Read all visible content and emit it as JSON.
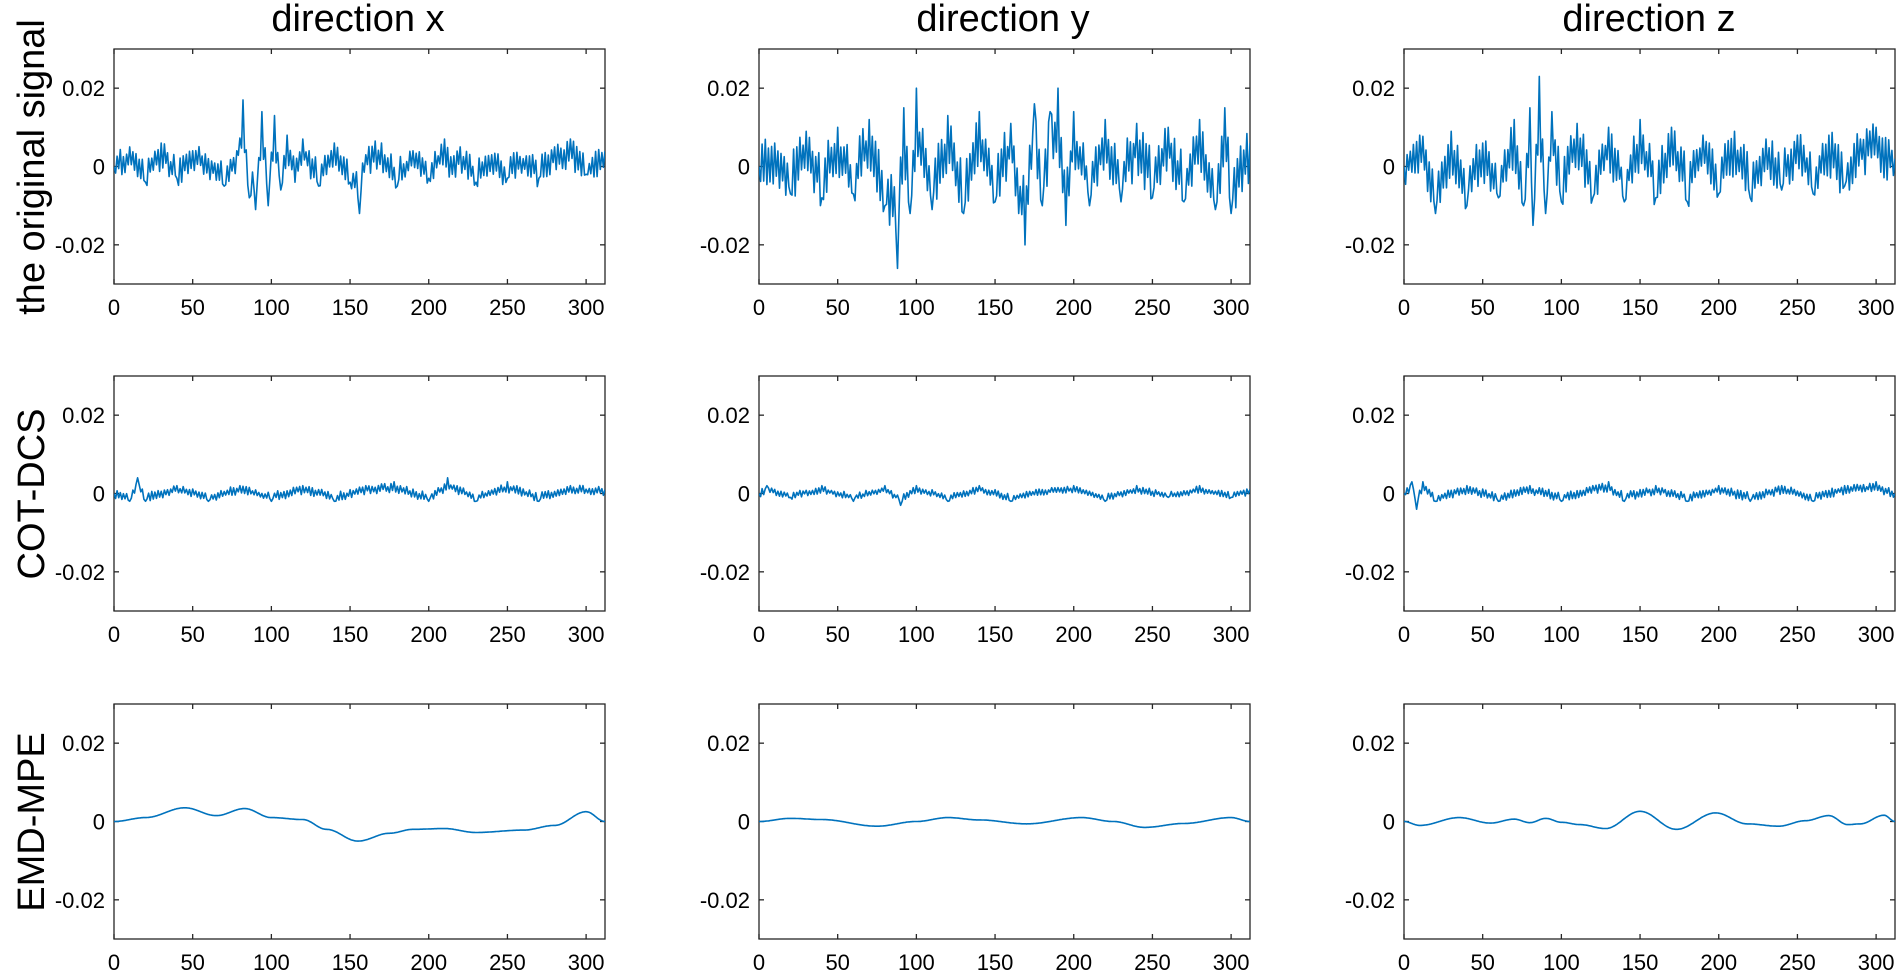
{
  "figure": {
    "column_titles": [
      "direction x",
      "direction y",
      "direction z"
    ],
    "row_labels": [
      "the original signal",
      "COT-DCS",
      "EMD-MPE"
    ]
  },
  "style": {
    "line_color": "#0072BD",
    "axes_color": "#262626"
  },
  "chart_data": [
    {
      "type": "line",
      "row": 0,
      "col": 0,
      "ylabel": "the original signal",
      "title": "direction x",
      "xlim": [
        0,
        312
      ],
      "ylim": [
        -0.03,
        0.03
      ],
      "xticks": [
        0,
        50,
        100,
        150,
        200,
        250,
        300
      ],
      "yticks": [
        -0.02,
        0,
        0.02
      ],
      "grid": false,
      "waveform": "noise",
      "amplitude": 0.0045,
      "seed": 11,
      "x": [
        0,
        10,
        20,
        30,
        40,
        50,
        60,
        70,
        78,
        82,
        86,
        90,
        94,
        98,
        102,
        106,
        110,
        115,
        120,
        130,
        140,
        150,
        156,
        160,
        170,
        180,
        190,
        200,
        210,
        215,
        220,
        230,
        240,
        250,
        260,
        270,
        280,
        290,
        300,
        312
      ],
      "y": [
        0,
        0.005,
        -0.004,
        0.006,
        -0.003,
        0.004,
        0.002,
        -0.005,
        0.004,
        0.017,
        -0.008,
        -0.011,
        0.014,
        -0.01,
        0.013,
        -0.006,
        0.008,
        -0.004,
        0.007,
        -0.005,
        0.006,
        -0.004,
        -0.012,
        0.003,
        0.006,
        -0.005,
        0.004,
        -0.003,
        0.007,
        -0.002,
        0.005,
        -0.004,
        0.003,
        -0.003,
        0.002,
        -0.003,
        0.005,
        0.007,
        -0.002,
        0.004
      ]
    },
    {
      "type": "line",
      "row": 0,
      "col": 1,
      "title": "direction y",
      "xlim": [
        0,
        312
      ],
      "ylim": [
        -0.03,
        0.03
      ],
      "xticks": [
        0,
        50,
        100,
        150,
        200,
        250,
        300
      ],
      "yticks": [
        -0.02,
        0,
        0.02
      ],
      "grid": false,
      "waveform": "noise",
      "amplitude": 0.0085,
      "seed": 23,
      "x": [
        0,
        10,
        20,
        30,
        40,
        50,
        60,
        70,
        80,
        88,
        92,
        96,
        100,
        110,
        120,
        130,
        140,
        150,
        160,
        165,
        169,
        175,
        180,
        185,
        190,
        195,
        200,
        210,
        220,
        230,
        240,
        250,
        260,
        270,
        280,
        290,
        296,
        300,
        312
      ],
      "y": [
        0,
        0.006,
        -0.007,
        0.009,
        -0.008,
        0.01,
        -0.007,
        0.012,
        -0.01,
        -0.026,
        0.015,
        -0.012,
        0.02,
        -0.011,
        0.013,
        -0.012,
        0.014,
        -0.009,
        0.011,
        -0.012,
        -0.02,
        0.016,
        -0.01,
        0.014,
        0.02,
        -0.015,
        0.014,
        -0.01,
        0.012,
        -0.009,
        0.011,
        -0.008,
        0.01,
        -0.009,
        0.012,
        -0.011,
        0.015,
        -0.012,
        0.006
      ]
    },
    {
      "type": "line",
      "row": 0,
      "col": 2,
      "title": "direction z",
      "xlim": [
        0,
        312
      ],
      "ylim": [
        -0.03,
        0.03
      ],
      "xticks": [
        0,
        50,
        100,
        150,
        200,
        250,
        300
      ],
      "yticks": [
        -0.02,
        0,
        0.02
      ],
      "grid": false,
      "waveform": "noise",
      "amplitude": 0.0075,
      "seed": 37,
      "x": [
        0,
        10,
        20,
        30,
        40,
        50,
        60,
        70,
        76,
        80,
        82,
        86,
        90,
        94,
        100,
        110,
        120,
        130,
        140,
        150,
        160,
        170,
        180,
        190,
        200,
        210,
        220,
        230,
        240,
        250,
        260,
        270,
        280,
        290,
        300,
        312
      ],
      "y": [
        0,
        0.008,
        -0.012,
        0.009,
        -0.01,
        0.006,
        -0.008,
        0.012,
        -0.01,
        0.015,
        -0.015,
        0.023,
        -0.012,
        0.014,
        -0.009,
        0.011,
        -0.008,
        0.01,
        -0.009,
        0.012,
        -0.008,
        0.01,
        -0.009,
        0.008,
        -0.007,
        0.009,
        -0.008,
        0.007,
        -0.006,
        0.008,
        -0.007,
        0.008,
        -0.005,
        0.007,
        0.01,
        0.002
      ]
    },
    {
      "type": "line",
      "row": 1,
      "col": 0,
      "ylabel": "COT-DCS",
      "xlim": [
        0,
        312
      ],
      "ylim": [
        -0.03,
        0.03
      ],
      "xticks": [
        0,
        50,
        100,
        150,
        200,
        250,
        300
      ],
      "yticks": [
        -0.02,
        0,
        0.02
      ],
      "grid": false,
      "waveform": "noise",
      "amplitude": 0.0014,
      "seed": 51,
      "x": [
        0,
        10,
        15,
        20,
        40,
        60,
        80,
        100,
        120,
        140,
        160,
        178,
        200,
        212,
        230,
        250,
        270,
        290,
        312
      ],
      "y": [
        0,
        -0.002,
        0.004,
        -0.002,
        0.002,
        -0.002,
        0.002,
        -0.002,
        0.002,
        -0.002,
        0.002,
        0.003,
        -0.002,
        0.004,
        -0.002,
        0.003,
        -0.002,
        0.002,
        0.001
      ]
    },
    {
      "type": "line",
      "row": 1,
      "col": 1,
      "xlim": [
        0,
        312
      ],
      "ylim": [
        -0.03,
        0.03
      ],
      "xticks": [
        0,
        50,
        100,
        150,
        200,
        250,
        300
      ],
      "yticks": [
        -0.02,
        0,
        0.02
      ],
      "grid": false,
      "waveform": "noise",
      "amplitude": 0.0011,
      "seed": 63,
      "x": [
        0,
        5,
        20,
        40,
        60,
        80,
        90,
        100,
        120,
        140,
        160,
        180,
        200,
        220,
        240,
        260,
        280,
        300,
        312
      ],
      "y": [
        0,
        0.002,
        -0.001,
        0.002,
        -0.002,
        0.002,
        -0.003,
        0.002,
        -0.002,
        0.002,
        -0.002,
        0.001,
        0.002,
        -0.002,
        0.002,
        -0.001,
        0.002,
        -0.001,
        0.001
      ]
    },
    {
      "type": "line",
      "row": 1,
      "col": 2,
      "xlim": [
        0,
        312
      ],
      "ylim": [
        -0.03,
        0.03
      ],
      "xticks": [
        0,
        50,
        100,
        150,
        200,
        250,
        300
      ],
      "yticks": [
        -0.02,
        0,
        0.02
      ],
      "grid": false,
      "waveform": "noise",
      "amplitude": 0.0014,
      "seed": 77,
      "x": [
        0,
        5,
        8,
        12,
        20,
        40,
        60,
        80,
        100,
        120,
        130,
        140,
        160,
        180,
        200,
        220,
        240,
        260,
        280,
        300,
        312
      ],
      "y": [
        0,
        0.003,
        -0.004,
        0.003,
        -0.002,
        0.002,
        -0.002,
        0.002,
        -0.002,
        0.002,
        0.003,
        -0.002,
        0.002,
        -0.002,
        0.002,
        -0.002,
        0.002,
        -0.002,
        0.002,
        0.003,
        0
      ]
    },
    {
      "type": "line",
      "row": 2,
      "col": 0,
      "ylabel": "EMD-MPE",
      "xlim": [
        0,
        312
      ],
      "ylim": [
        -0.03,
        0.03
      ],
      "xticks": [
        0,
        50,
        100,
        150,
        200,
        250,
        300
      ],
      "yticks": [
        -0.02,
        0,
        0.02
      ],
      "grid": false,
      "waveform": "smooth",
      "x": [
        0,
        20,
        45,
        65,
        83,
        100,
        120,
        135,
        155,
        175,
        190,
        210,
        230,
        260,
        280,
        300,
        312
      ],
      "y": [
        0,
        0.001,
        0.0035,
        0.0015,
        0.0033,
        0.001,
        0.0005,
        -0.002,
        -0.005,
        -0.003,
        -0.002,
        -0.0018,
        -0.0028,
        -0.0022,
        -0.001,
        0.0025,
        0
      ]
    },
    {
      "type": "line",
      "row": 2,
      "col": 1,
      "xlim": [
        0,
        312
      ],
      "ylim": [
        -0.03,
        0.03
      ],
      "xticks": [
        0,
        50,
        100,
        150,
        200,
        250,
        300
      ],
      "yticks": [
        -0.02,
        0,
        0.02
      ],
      "grid": false,
      "waveform": "smooth",
      "x": [
        0,
        20,
        40,
        75,
        100,
        120,
        140,
        170,
        205,
        225,
        245,
        270,
        300,
        312
      ],
      "y": [
        0,
        0.0008,
        0.0005,
        -0.0012,
        0,
        0.001,
        0.0004,
        -0.0006,
        0.001,
        0,
        -0.0015,
        -0.0005,
        0.001,
        0
      ]
    },
    {
      "type": "line",
      "row": 2,
      "col": 2,
      "xlim": [
        0,
        312
      ],
      "ylim": [
        -0.03,
        0.03
      ],
      "xticks": [
        0,
        50,
        100,
        150,
        200,
        250,
        300
      ],
      "yticks": [
        -0.02,
        0,
        0.02
      ],
      "grid": false,
      "waveform": "smooth",
      "x": [
        0,
        10,
        35,
        55,
        70,
        80,
        90,
        100,
        112,
        128,
        150,
        173,
        198,
        218,
        238,
        255,
        270,
        282,
        290,
        305,
        312
      ],
      "y": [
        0,
        -0.001,
        0.001,
        -0.0004,
        0.0006,
        -0.0003,
        0.0008,
        -0.0002,
        -0.0008,
        -0.0018,
        0.0026,
        -0.002,
        0.0022,
        -0.0006,
        -0.0012,
        0.0002,
        0.0015,
        -0.0008,
        -0.0006,
        0.0016,
        0
      ]
    }
  ]
}
